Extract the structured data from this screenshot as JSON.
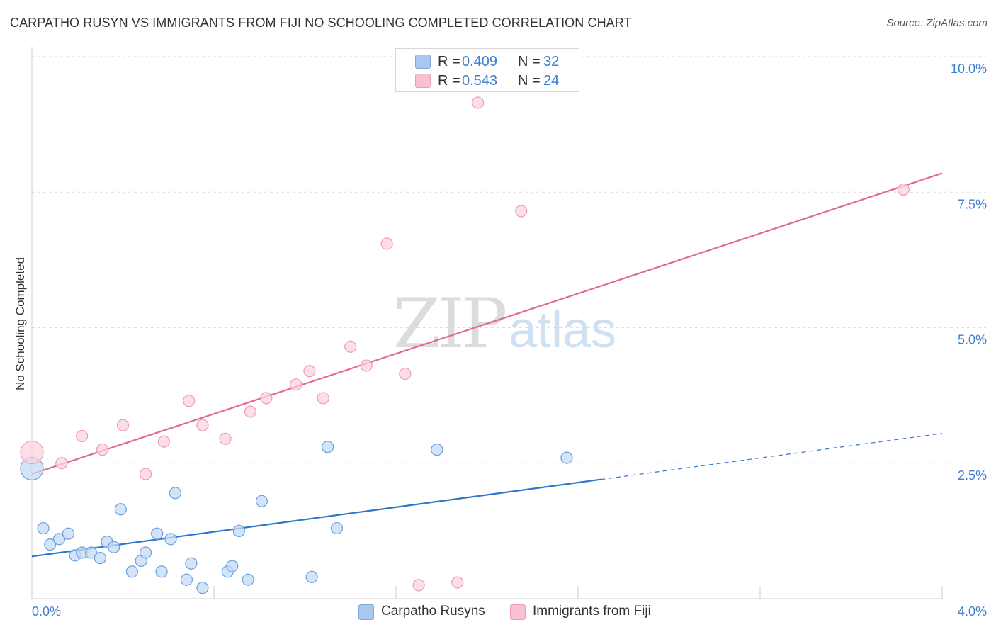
{
  "title": "CARPATHO RUSYN VS IMMIGRANTS FROM FIJI NO SCHOOLING COMPLETED CORRELATION CHART",
  "source": "Source: ZipAtlas.com",
  "watermark": {
    "zip": "ZIP",
    "atlas": "atlas"
  },
  "stats": [
    {
      "r_label": "R =",
      "r_value": "0.409",
      "n_label": "N =",
      "n_value": "32",
      "color": "#aac8ef",
      "border": "#7fa8de"
    },
    {
      "r_label": "R =",
      "r_value": "0.543",
      "n_label": "N =",
      "n_value": "24",
      "color": "#f7c1d1",
      "border": "#ee9ab4"
    }
  ],
  "legend": [
    {
      "label": "Carpatho Rusyns",
      "color": "#aac8ef",
      "border": "#7fa8de"
    },
    {
      "label": "Immigrants from Fiji",
      "color": "#f7c1d1",
      "border": "#ee9ab4"
    }
  ],
  "chart_data": {
    "type": "scatter",
    "title": "CARPATHO RUSYN VS IMMIGRANTS FROM FIJI NO SCHOOLING COMPLETED CORRELATION CHART",
    "xlabel": "",
    "ylabel": "No Schooling Completed",
    "xlim": [
      0,
      4.0
    ],
    "ylim": [
      0,
      10.0
    ],
    "x_ticks": [
      "0.0%",
      "4.0%"
    ],
    "y_ticks": [
      {
        "value": 2.5,
        "label": "2.5%"
      },
      {
        "value": 5.0,
        "label": "5.0%"
      },
      {
        "value": 7.5,
        "label": "7.5%"
      },
      {
        "value": 10.0,
        "label": "10.0%"
      }
    ],
    "grid": "horizontal dashed",
    "legend_position": "bottom",
    "series": [
      {
        "name": "Carpatho Rusyns",
        "color": "#6a9fde",
        "fill": "#c6dbf5",
        "line_color": "#2f74cf",
        "trend": {
          "x0": 0.0,
          "y0": 0.78,
          "x1": 2.5,
          "y1": 2.2,
          "dashed_to_x": 4.0,
          "dashed_to_y": 3.05
        },
        "points": [
          {
            "x": 0.0,
            "y": 2.4,
            "big": true
          },
          {
            "x": 0.05,
            "y": 1.3
          },
          {
            "x": 0.08,
            "y": 1.0
          },
          {
            "x": 0.12,
            "y": 1.1
          },
          {
            "x": 0.16,
            "y": 1.2
          },
          {
            "x": 0.19,
            "y": 0.8
          },
          {
            "x": 0.22,
            "y": 0.85
          },
          {
            "x": 0.26,
            "y": 0.85
          },
          {
            "x": 0.3,
            "y": 0.75
          },
          {
            "x": 0.33,
            "y": 1.05
          },
          {
            "x": 0.36,
            "y": 0.95
          },
          {
            "x": 0.39,
            "y": 1.65
          },
          {
            "x": 0.44,
            "y": 0.5
          },
          {
            "x": 0.48,
            "y": 0.7
          },
          {
            "x": 0.5,
            "y": 0.85
          },
          {
            "x": 0.55,
            "y": 1.2
          },
          {
            "x": 0.57,
            "y": 0.5
          },
          {
            "x": 0.61,
            "y": 1.1
          },
          {
            "x": 0.63,
            "y": 1.95
          },
          {
            "x": 0.68,
            "y": 0.35
          },
          {
            "x": 0.7,
            "y": 0.65
          },
          {
            "x": 0.75,
            "y": 0.2
          },
          {
            "x": 0.86,
            "y": 0.5
          },
          {
            "x": 0.88,
            "y": 0.6
          },
          {
            "x": 0.91,
            "y": 1.25
          },
          {
            "x": 0.95,
            "y": 0.35
          },
          {
            "x": 1.01,
            "y": 1.8
          },
          {
            "x": 1.23,
            "y": 0.4
          },
          {
            "x": 1.3,
            "y": 2.8
          },
          {
            "x": 1.34,
            "y": 1.3
          },
          {
            "x": 1.78,
            "y": 2.75
          },
          {
            "x": 2.35,
            "y": 2.6
          }
        ]
      },
      {
        "name": "Immigrants from Fiji",
        "color": "#ef9bb5",
        "fill": "#fad3df",
        "line_color": "#e06a92",
        "trend": {
          "x0": 0.0,
          "y0": 2.3,
          "x1": 4.0,
          "y1": 7.85
        },
        "points": [
          {
            "x": 0.0,
            "y": 2.7,
            "big": true
          },
          {
            "x": 0.13,
            "y": 2.5
          },
          {
            "x": 0.22,
            "y": 3.0
          },
          {
            "x": 0.31,
            "y": 2.75
          },
          {
            "x": 0.4,
            "y": 3.2
          },
          {
            "x": 0.5,
            "y": 2.3
          },
          {
            "x": 0.58,
            "y": 2.9
          },
          {
            "x": 0.69,
            "y": 3.65
          },
          {
            "x": 0.75,
            "y": 3.2
          },
          {
            "x": 0.85,
            "y": 2.95
          },
          {
            "x": 0.96,
            "y": 3.45
          },
          {
            "x": 1.03,
            "y": 3.7
          },
          {
            "x": 1.16,
            "y": 3.95
          },
          {
            "x": 1.22,
            "y": 4.2
          },
          {
            "x": 1.28,
            "y": 3.7
          },
          {
            "x": 1.4,
            "y": 4.65
          },
          {
            "x": 1.47,
            "y": 4.3
          },
          {
            "x": 1.56,
            "y": 6.55
          },
          {
            "x": 1.64,
            "y": 4.15
          },
          {
            "x": 1.7,
            "y": 0.25
          },
          {
            "x": 1.87,
            "y": 0.3
          },
          {
            "x": 1.96,
            "y": 9.15
          },
          {
            "x": 2.15,
            "y": 7.15
          },
          {
            "x": 3.83,
            "y": 7.55
          }
        ]
      }
    ]
  }
}
